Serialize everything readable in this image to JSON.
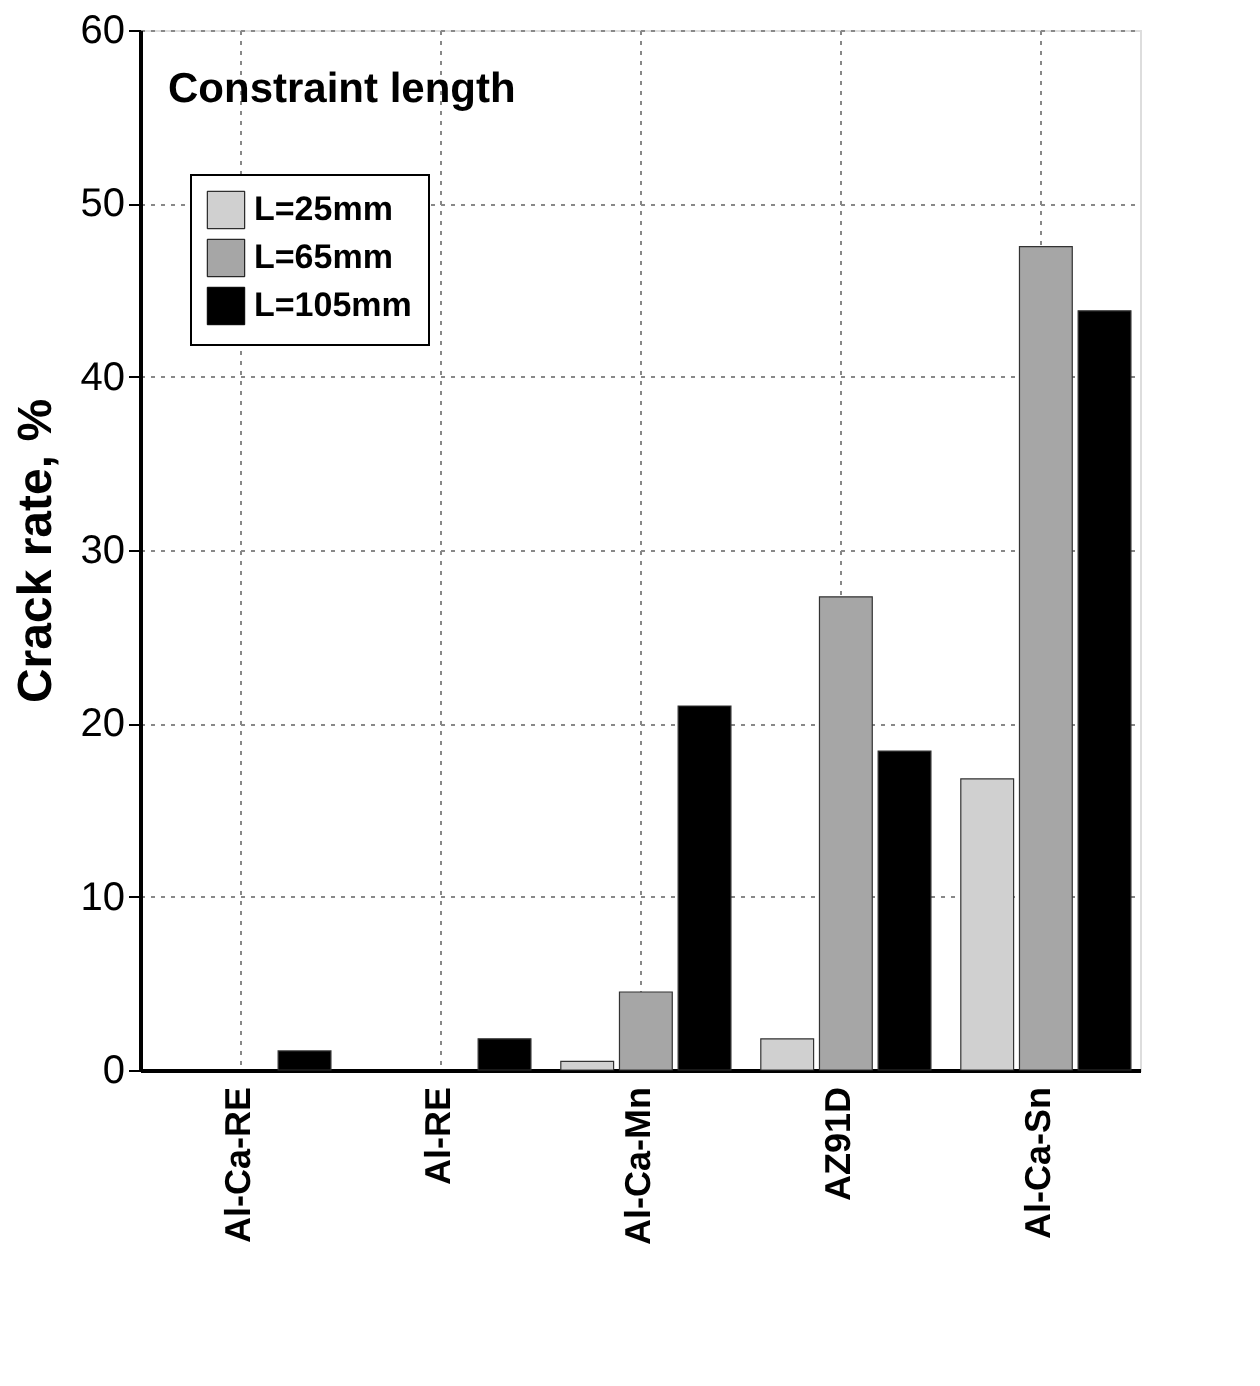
{
  "chart_data": {
    "type": "bar",
    "ylabel": "Crack rate, %",
    "legend_title": "Constraint length",
    "categories": [
      "Al-Ca-RE",
      "Al-RE",
      "Al-Ca-Mn",
      "AZ91D",
      "Al-Ca-Sn"
    ],
    "series": [
      {
        "name": "L=25mm",
        "color": "#d0d0d0",
        "values": [
          null,
          null,
          0.5,
          1.8,
          16.8
        ]
      },
      {
        "name": "L=65mm",
        "color": "#a6a6a6",
        "values": [
          null,
          null,
          4.5,
          27.3,
          47.5
        ]
      },
      {
        "name": "L=105mm",
        "color": "#000000",
        "values": [
          1.1,
          1.8,
          21,
          18.4,
          43.8
        ]
      }
    ],
    "ylim": [
      0,
      60
    ],
    "yticks": [
      0,
      10,
      20,
      30,
      40,
      50,
      60
    ],
    "grid": true,
    "legend": "top left"
  }
}
